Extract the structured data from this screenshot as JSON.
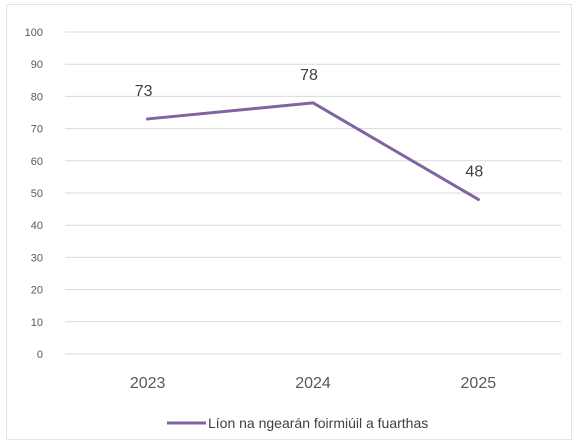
{
  "chart_data": {
    "type": "line",
    "title": "",
    "xlabel": "",
    "ylabel": "",
    "categories": [
      "2023",
      "2024",
      "2025"
    ],
    "series": [
      {
        "name": "Líon na ngearán foirmiúil a fuarthas",
        "values": [
          73,
          78,
          48
        ],
        "color": "#8064a2"
      }
    ],
    "ylim": [
      0,
      100
    ],
    "yticks": [
      0,
      10,
      20,
      30,
      40,
      50,
      60,
      70,
      80,
      90,
      100
    ],
    "grid": true,
    "legend_position": "bottom"
  }
}
